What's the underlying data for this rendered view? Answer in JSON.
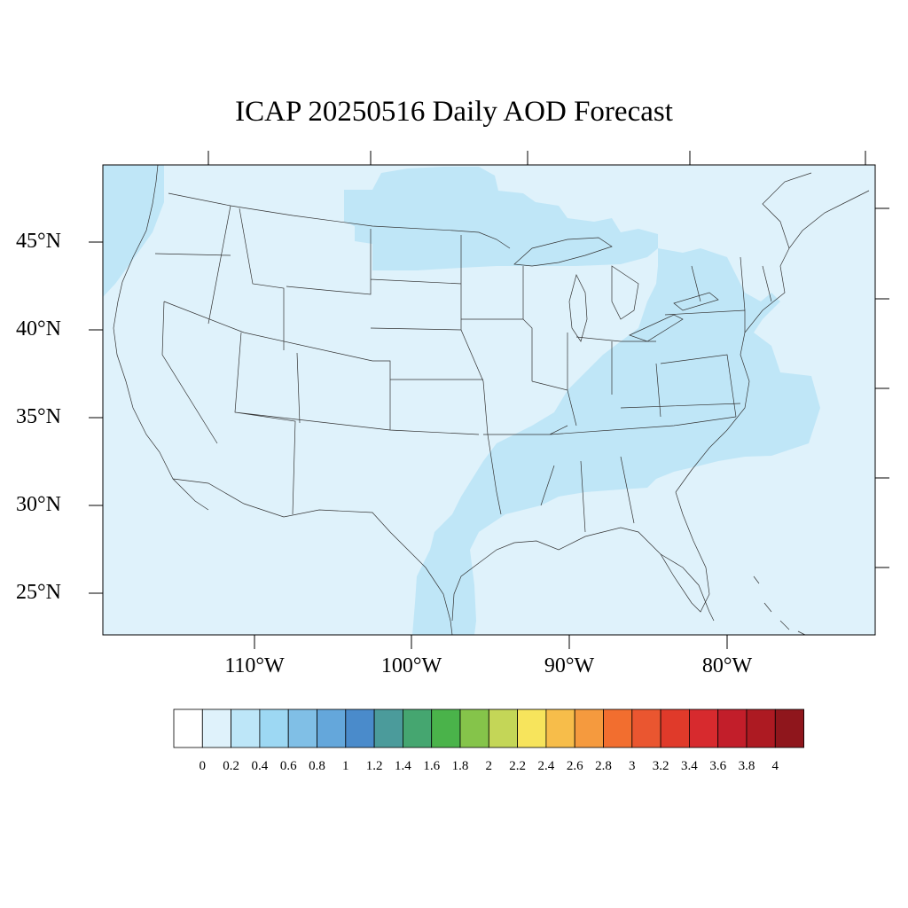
{
  "title": "ICAP 20250516 Daily AOD Forecast",
  "map": {
    "region": "Contiguous United States",
    "background_color": "#dff2fb",
    "elevated_color": "#bfe6f7",
    "lat_labels": [
      "45°N",
      "40°N",
      "35°N",
      "30°N",
      "25°N"
    ],
    "lon_labels": [
      "110°W",
      "100°W",
      "90°W",
      "80°W"
    ],
    "features": [
      "state-borders",
      "coastlines",
      "great-lakes"
    ]
  },
  "colorbar": {
    "labels": [
      "0",
      "0.2",
      "0.4",
      "0.6",
      "0.8",
      "1",
      "1.2",
      "1.4",
      "1.6",
      "1.8",
      "2",
      "2.2",
      "2.4",
      "2.6",
      "2.8",
      "3",
      "3.2",
      "3.4",
      "3.6",
      "3.8",
      "4"
    ],
    "colors": [
      "#ffffff",
      "#dff2fb",
      "#bde6f8",
      "#9dd8f3",
      "#80bfe6",
      "#64a7db",
      "#4a8bcb",
      "#4b9b9b",
      "#45a670",
      "#4ab34a",
      "#85c44a",
      "#c4d657",
      "#f7e45c",
      "#f7bd4a",
      "#f59a3e",
      "#f26e2f",
      "#ea5630",
      "#e03a2a",
      "#d72a2e",
      "#c21e2a",
      "#ad1a22",
      "#8f161c"
    ]
  }
}
